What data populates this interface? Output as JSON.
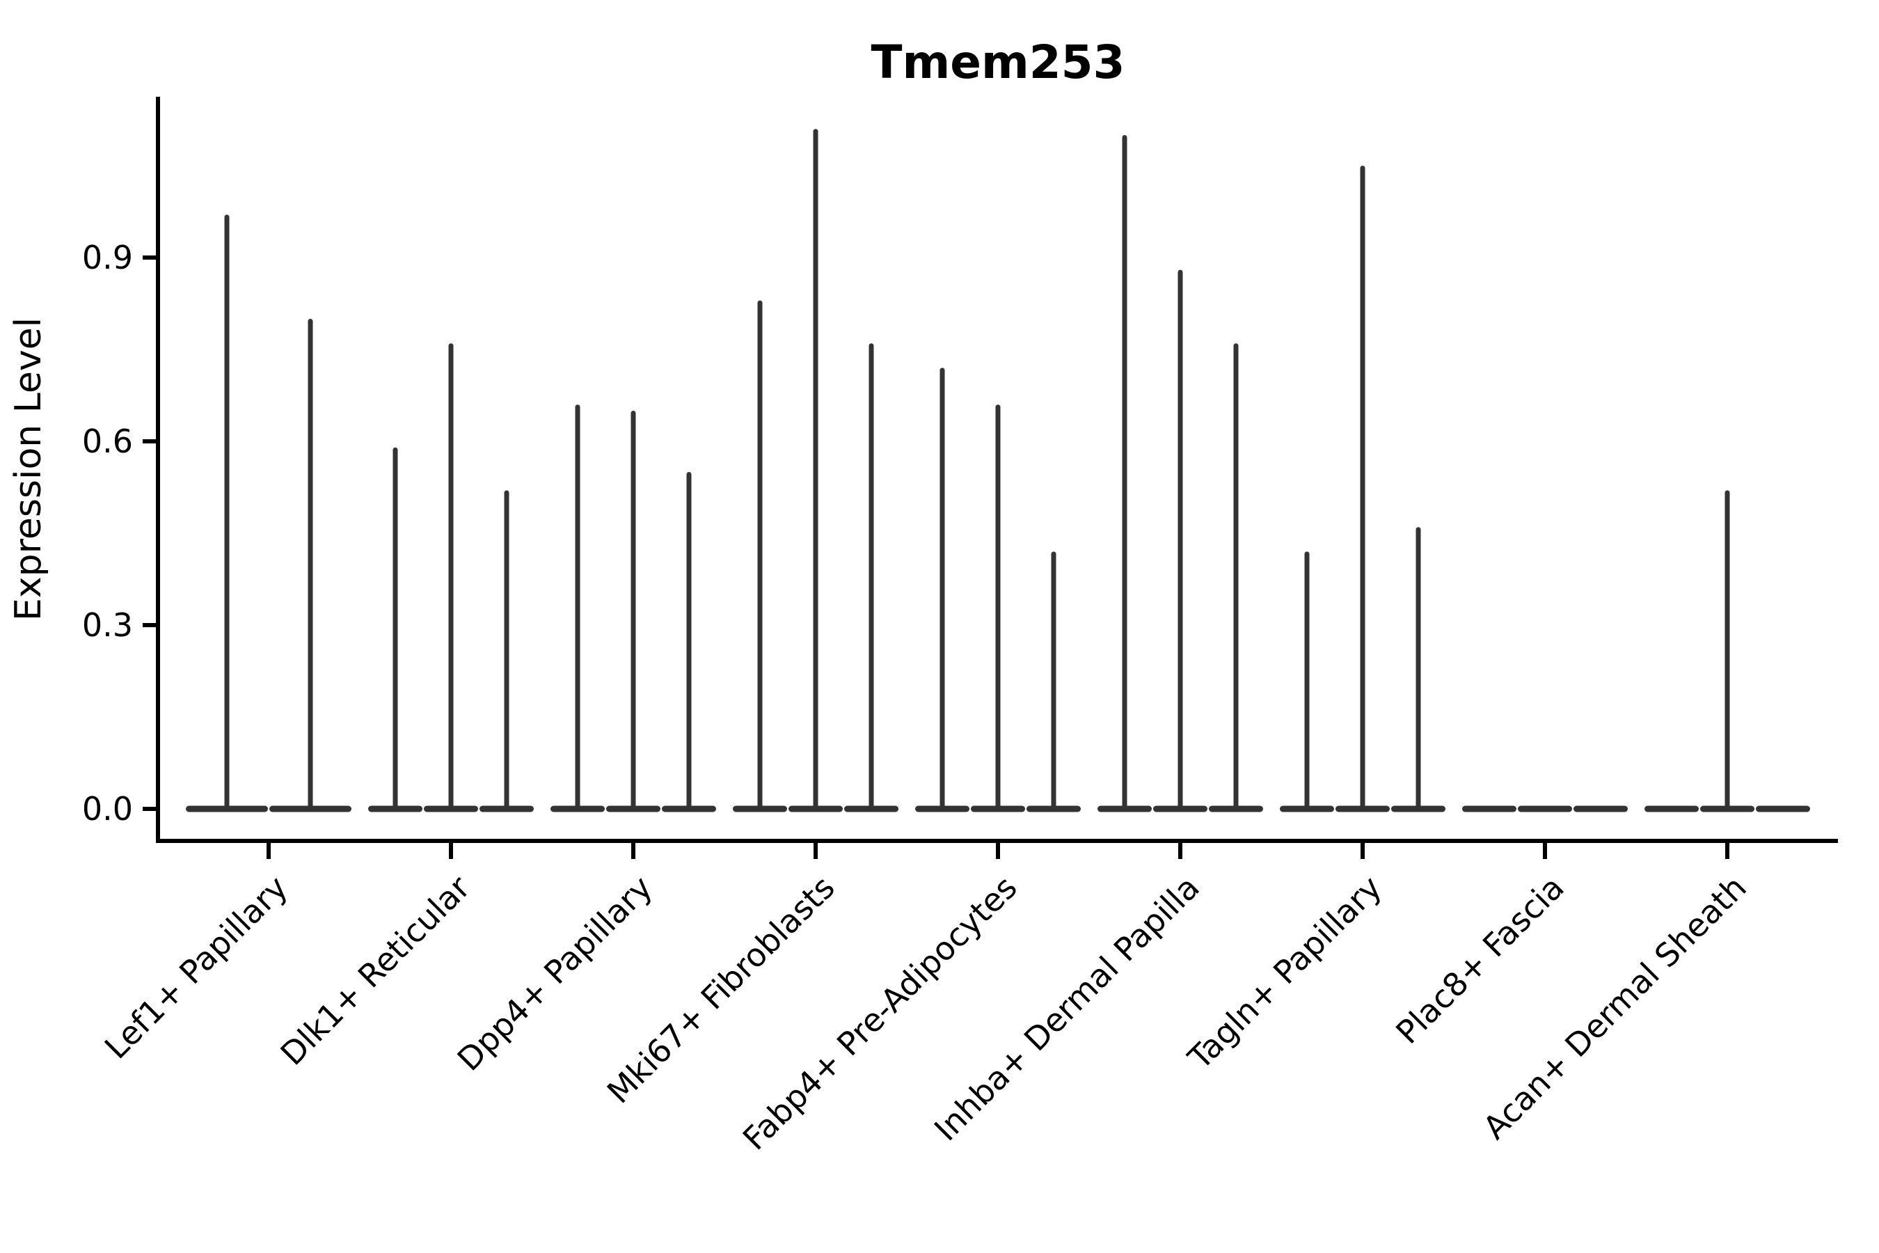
{
  "chart_data": {
    "type": "violin",
    "title": "Tmem253",
    "ylabel": "Expression Level",
    "xlabel": "",
    "ytick_labels": [
      "0.0",
      "0.3",
      "0.6",
      "0.9"
    ],
    "ytick_values": [
      0.0,
      0.3,
      0.6,
      0.9
    ],
    "ylim": [
      -0.06,
      1.17
    ],
    "grid": false,
    "legend": null,
    "categories": [
      "Lef1+ Papillary",
      "Dlk1+ Reticular",
      "Dpp4+ Papillary",
      "Mki67+ Fibroblasts",
      "Fabp4+ Pre-Adipocytes",
      "Inhba+ Dermal Papilla",
      "Tagln+ Papillary",
      "Plac8+ Fascia",
      "Acan+ Dermal Sheath"
    ],
    "series": [
      {
        "category": "Lef1+ Papillary",
        "violin_maxima": [
          0.97,
          0.8
        ]
      },
      {
        "category": "Dlk1+ Reticular",
        "violin_maxima": [
          0.59,
          0.76,
          0.52
        ]
      },
      {
        "category": "Dpp4+ Papillary",
        "violin_maxima": [
          0.66,
          0.65,
          0.55
        ]
      },
      {
        "category": "Mki67+ Fibroblasts",
        "violin_maxima": [
          0.83,
          1.11,
          0.76
        ]
      },
      {
        "category": "Fabp4+ Pre-Adipocytes",
        "violin_maxima": [
          0.72,
          0.66,
          0.42
        ]
      },
      {
        "category": "Inhba+ Dermal Papilla",
        "violin_maxima": [
          1.1,
          0.88,
          0.76
        ]
      },
      {
        "category": "Tagln+ Papillary",
        "violin_maxima": [
          0.42,
          1.05,
          0.46
        ]
      },
      {
        "category": "Plac8+ Fascia",
        "violin_maxima": [
          null,
          null,
          null
        ]
      },
      {
        "category": "Acan+ Dermal Sheath",
        "violin_maxima": [
          null,
          0.52,
          null
        ]
      }
    ]
  },
  "colors": {
    "violin": "#333333",
    "axis": "#000000",
    "text": "#000000",
    "background": "#ffffff"
  }
}
